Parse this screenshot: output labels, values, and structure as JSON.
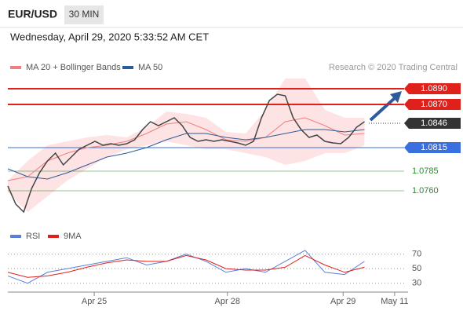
{
  "header": {
    "symbol": "EUR/USD",
    "timeframe": "30 MIN",
    "timestamp": "Wednesday, April 29, 2020 5:33:52 AM CET",
    "credit": "Research © 2020 Trading Central"
  },
  "chart_data": {
    "type": "line",
    "color": "#444444",
    "x": [
      0,
      2,
      4,
      6,
      8,
      10,
      12,
      14,
      16,
      18,
      20,
      22,
      24,
      26,
      28,
      30,
      32,
      34,
      36,
      38,
      40,
      42,
      44,
      46,
      48,
      50,
      52,
      54,
      56,
      58,
      60,
      62,
      64,
      66,
      68,
      70,
      72,
      74,
      76,
      78,
      80,
      82,
      84,
      86,
      88,
      90
    ],
    "values": [
      1.0766,
      1.0743,
      1.0733,
      1.0763,
      1.0783,
      1.0798,
      1.0808,
      1.0793,
      1.0803,
      1.0813,
      1.0818,
      1.0823,
      1.0818,
      1.082,
      1.0818,
      1.082,
      1.0825,
      1.0838,
      1.0848,
      1.0843,
      1.0848,
      1.0853,
      1.0843,
      1.0828,
      1.0823,
      1.0825,
      1.0823,
      1.0825,
      1.0823,
      1.0821,
      1.0818,
      1.0823,
      1.0853,
      1.0875,
      1.0883,
      1.0881,
      1.0853,
      1.0838,
      1.0828,
      1.0831,
      1.0823,
      1.0821,
      1.082,
      1.0828,
      1.0841,
      1.0848
    ],
    "overlay_x": [
      0,
      5,
      10,
      15,
      20,
      25,
      30,
      35,
      40,
      45,
      50,
      55,
      60,
      65,
      70,
      75,
      80,
      85,
      90
    ],
    "overlays": [
      {
        "name": "MA 20 + Bollinger Bands",
        "color": "#f08080",
        "values": [
          1.0773,
          1.0778,
          1.0798,
          1.0808,
          1.0815,
          1.0818,
          1.0823,
          1.0833,
          1.0845,
          1.0848,
          1.0838,
          1.0825,
          1.0823,
          1.0828,
          1.0848,
          1.0853,
          1.0843,
          1.0831,
          1.0833
        ]
      },
      {
        "name": "MA 50",
        "color": "#2d5a9a",
        "values": [
          1.0788,
          1.0778,
          1.0775,
          1.0783,
          1.0793,
          1.0803,
          1.0808,
          1.0815,
          1.0825,
          1.0833,
          1.0833,
          1.0828,
          1.0825,
          1.0828,
          1.0833,
          1.0838,
          1.0838,
          1.0835,
          1.0838
        ]
      }
    ],
    "bands": {
      "color": "#fde3e3",
      "upper": [
        1.0773,
        1.0798,
        1.0818,
        1.0823,
        1.0828,
        1.0831,
        1.0828,
        1.0841,
        1.0861,
        1.0858,
        1.0853,
        1.0835,
        1.0833,
        1.0863,
        1.0903,
        1.0903,
        1.0863,
        1.0853,
        1.0853
      ],
      "lower": [
        1.0758,
        1.0733,
        1.0753,
        1.0773,
        1.0788,
        1.0803,
        1.0813,
        1.0818,
        1.0823,
        1.0818,
        1.0813,
        1.0813,
        1.0808,
        1.0803,
        1.0793,
        1.0798,
        1.0808,
        1.0808,
        1.0818
      ]
    },
    "levels": [
      {
        "value": 1.089,
        "label": "1.0890",
        "color": "#e0201b",
        "box": true
      },
      {
        "value": 1.087,
        "label": "1.0870",
        "color": "#e0201b",
        "box": true
      },
      {
        "value": 1.0846,
        "label": "1.0846",
        "color": "#333333",
        "box": true
      },
      {
        "value": 1.0815,
        "label": "1.0815",
        "color": "#3a6fe0",
        "box": true
      },
      {
        "value": 1.0785,
        "label": "1.0785",
        "color": "#2a8a2a",
        "box": false
      },
      {
        "value": 1.076,
        "label": "1.0760",
        "color": "#2a8a2a",
        "box": false
      }
    ],
    "ylim": [
      1.0718,
      1.0913
    ],
    "xlim": [
      0,
      100
    ],
    "xticks": [
      {
        "value": 21.8,
        "label": "Apr 25"
      },
      {
        "value": 55.4,
        "label": "Apr 28"
      },
      {
        "value": 84.6,
        "label": "Apr 29"
      },
      {
        "value": 97.6,
        "label": "May 11"
      }
    ],
    "rsi": {
      "ylim": [
        20,
        76
      ],
      "yticks": [
        30,
        50,
        70
      ],
      "series": [
        {
          "name": "RSI",
          "color": "#5b7fd6",
          "values": [
            40,
            30,
            45,
            50,
            55,
            60,
            65,
            55,
            60,
            70,
            60,
            45,
            50,
            45,
            60,
            75,
            45,
            42,
            60
          ]
        },
        {
          "name": "9MA",
          "color": "#e0201b",
          "values": [
            45,
            38,
            40,
            45,
            52,
            58,
            62,
            60,
            60,
            68,
            62,
            50,
            48,
            48,
            52,
            68,
            55,
            45,
            52
          ]
        }
      ]
    }
  }
}
